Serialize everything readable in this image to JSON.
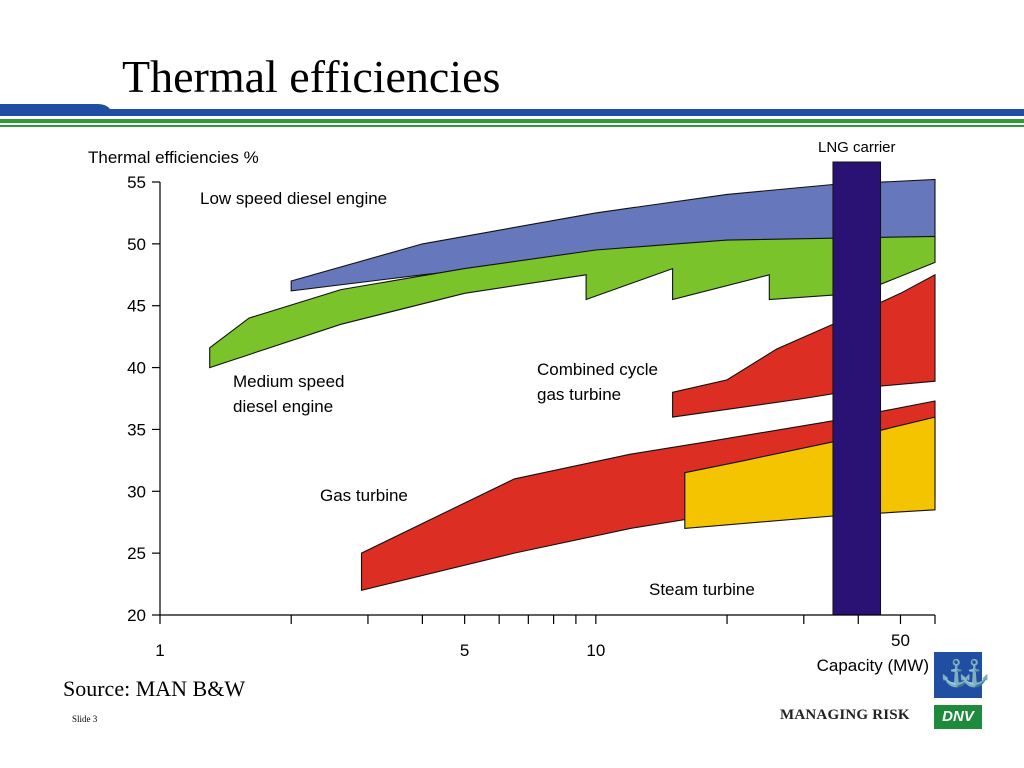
{
  "slide": {
    "title": "Thermal efficiencies",
    "source": "Source: MAN B&W",
    "slide_number": "Slide 3",
    "tagline": "MANAGING RISK",
    "logo_text": "DNV",
    "logo_icon": "anchor-emblem-icon",
    "colors": {
      "stripe_blue": "#1f4ea3",
      "stripe_green": "#2e9a3a"
    }
  },
  "chart_data": {
    "type": "area",
    "ylabel": "Thermal efficiencies %",
    "xlabel": "Capacity (MW)",
    "x_scale": "log",
    "xlim": [
      1,
      60
    ],
    "ylim": [
      20,
      55
    ],
    "x_tick_labels": [
      {
        "value": 1,
        "label": "1"
      },
      {
        "value": 5,
        "label": "5"
      },
      {
        "value": 10,
        "label": "10"
      },
      {
        "value": 50,
        "label": "50"
      }
    ],
    "x_minor_ticks": [
      1,
      2,
      3,
      4,
      5,
      6,
      7,
      8,
      9,
      10,
      20,
      30,
      40,
      50,
      60
    ],
    "y_ticks": [
      20,
      25,
      30,
      35,
      40,
      45,
      50,
      55
    ],
    "grid": false,
    "series": [
      {
        "name": "Low speed diesel engine",
        "color": "#6677bb",
        "upper": [
          [
            2.0,
            47.0
          ],
          [
            4.0,
            50.0
          ],
          [
            10.0,
            52.5
          ],
          [
            20.0,
            54.0
          ],
          [
            35.0,
            54.8
          ],
          [
            60.0,
            55.2
          ]
        ],
        "lower": [
          [
            2.0,
            46.2
          ],
          [
            4.0,
            47.5
          ],
          [
            10.0,
            49.0
          ],
          [
            20.0,
            50.0
          ],
          [
            35.0,
            50.3
          ],
          [
            60.0,
            50.5
          ]
        ]
      },
      {
        "name": "Medium speed diesel engine",
        "color": "#7bc32a",
        "upper": [
          [
            1.3,
            41.6
          ],
          [
            1.6,
            44.0
          ],
          [
            2.6,
            46.3
          ],
          [
            5.0,
            48.0
          ],
          [
            10.0,
            49.5
          ],
          [
            20.0,
            50.3
          ],
          [
            60.0,
            50.6
          ]
        ],
        "lower": [
          [
            1.3,
            40.0
          ],
          [
            2.6,
            43.5
          ],
          [
            5.0,
            46.0
          ],
          [
            9.5,
            47.5
          ],
          [
            9.5,
            45.5
          ],
          [
            15.0,
            48.0
          ],
          [
            15.0,
            45.5
          ],
          [
            25.0,
            47.5
          ],
          [
            25.0,
            45.5
          ],
          [
            40.0,
            46.0
          ],
          [
            60.0,
            48.5
          ]
        ]
      },
      {
        "name": "Combined cycle gas turbine",
        "color": "#dc2e22",
        "upper": [
          [
            15.0,
            38.0
          ],
          [
            20.0,
            39.0
          ],
          [
            26.0,
            41.5
          ],
          [
            35.0,
            43.5
          ],
          [
            50.0,
            46.0
          ],
          [
            60.0,
            47.5
          ]
        ],
        "lower": [
          [
            15.0,
            36.0
          ],
          [
            30.0,
            37.5
          ],
          [
            45.0,
            38.5
          ],
          [
            60.0,
            38.9
          ]
        ]
      },
      {
        "name": "Gas turbine",
        "color": "#dc2e22",
        "upper": [
          [
            2.9,
            25.0
          ],
          [
            6.5,
            31.0
          ],
          [
            12.0,
            33.0
          ],
          [
            18.0,
            34.0
          ],
          [
            35.0,
            35.7
          ],
          [
            60.0,
            37.3
          ]
        ],
        "lower": [
          [
            2.9,
            22.0
          ],
          [
            6.5,
            25.0
          ],
          [
            12.0,
            27.0
          ],
          [
            18.0,
            28.0
          ],
          [
            35.0,
            29.0
          ],
          [
            60.0,
            29.5
          ]
        ]
      },
      {
        "name": "Steam turbine",
        "color": "#f5c400",
        "upper": [
          [
            16.0,
            31.5
          ],
          [
            22.0,
            32.5
          ],
          [
            35.0,
            34.0
          ],
          [
            60.0,
            36.0
          ]
        ],
        "lower": [
          [
            16.0,
            27.0
          ],
          [
            35.0,
            28.0
          ],
          [
            60.0,
            28.5
          ]
        ]
      }
    ],
    "annotations": [
      {
        "text": "LNG carrier",
        "type": "vertical-band",
        "x_range": [
          35,
          45
        ],
        "color": "#2a1275"
      }
    ],
    "labels": [
      {
        "series": "Low speed diesel engine",
        "lines": [
          "Low speed diesel engine"
        ]
      },
      {
        "series": "Medium speed diesel engine",
        "lines": [
          "Medium speed",
          "diesel engine"
        ]
      },
      {
        "series": "Combined cycle gas turbine",
        "lines": [
          "Combined cycle",
          "gas turbine"
        ]
      },
      {
        "series": "Gas turbine",
        "lines": [
          "Gas turbine"
        ]
      },
      {
        "series": "Steam turbine",
        "lines": [
          "Steam turbine"
        ]
      }
    ]
  }
}
